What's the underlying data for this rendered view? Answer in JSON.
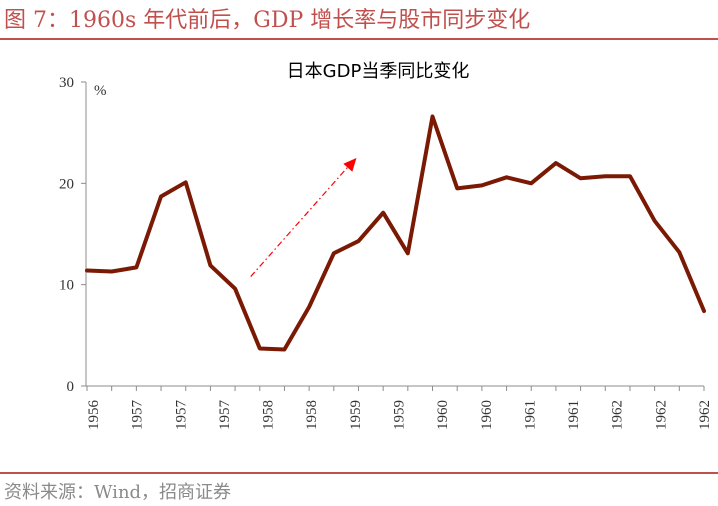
{
  "figure": {
    "title": "图 7：1960s 年代前后，GDP 增长率与股市同步变化",
    "source": "资料来源：Wind，招商证券"
  },
  "colors": {
    "accent": "#c0504d",
    "series": "#7b1a04",
    "arrow": "#ff0000",
    "axis": "#8c8c8c"
  },
  "chart_data": {
    "type": "line",
    "title": "日本GDP当季同比变化",
    "ylabel": "%",
    "ylim": [
      0,
      30
    ],
    "yticks": [
      0,
      10,
      20,
      30
    ],
    "grid": false,
    "legend": "none",
    "x_tick_labels": [
      "1956",
      "1957",
      "1957",
      "1957",
      "1958",
      "1958",
      "1959",
      "1959",
      "1960",
      "1960",
      "1961",
      "1961",
      "1962",
      "1962",
      "1962"
    ],
    "series": [
      {
        "values": [
          11.4,
          11.3,
          11.7,
          18.7,
          20.1,
          11.9,
          9.6,
          3.7,
          3.6,
          7.8,
          13.1,
          14.3,
          17.1,
          13.1,
          26.6,
          19.5,
          19.8,
          20.6,
          20.0,
          22.0,
          20.5,
          20.7,
          20.7,
          16.3,
          13.2,
          7.4
        ]
      }
    ],
    "annotation": {
      "type": "arrow",
      "style": "dash-dot",
      "from": {
        "index": 7,
        "value": 10.8
      },
      "to": {
        "index": 11,
        "value": 22.5
      }
    }
  }
}
